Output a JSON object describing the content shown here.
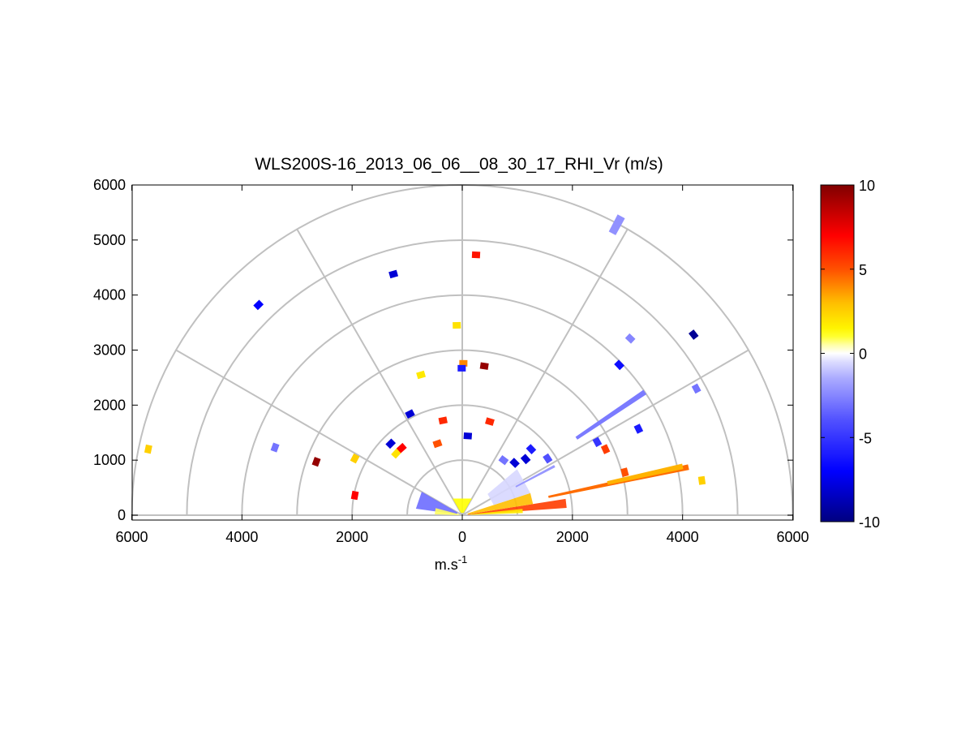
{
  "chart_data": {
    "type": "polar-scatter",
    "title": "WLS200S-16_2013_06_06__08_30_17_RHI_Vr (m/s)",
    "xlabel": "m.s",
    "xlabel_superscript": "-1",
    "ylabel": "",
    "xlim": [
      -6000,
      6000
    ],
    "ylim": [
      0,
      6000
    ],
    "x_ticks": [
      -6000,
      -4000,
      -2000,
      0,
      2000,
      4000,
      6000
    ],
    "x_tick_labels": [
      "6000",
      "4000",
      "2000",
      "0",
      "2000",
      "4000",
      "6000"
    ],
    "y_ticks": [
      0,
      1000,
      2000,
      3000,
      4000,
      5000,
      6000
    ],
    "y_tick_labels": [
      "0",
      "1000",
      "2000",
      "3000",
      "4000",
      "5000",
      "6000"
    ],
    "range_rings": [
      1000,
      2000,
      3000,
      4000,
      5000,
      6000
    ],
    "spokes_deg": [
      0,
      30,
      60,
      90,
      120,
      150,
      180
    ],
    "colorbar": {
      "min": -10,
      "max": 10,
      "ticks": [
        10,
        5,
        0,
        -5,
        -10
      ],
      "tick_labels": [
        "10",
        "5",
        "0",
        "-5",
        "-10"
      ]
    },
    "bands": [
      {
        "angle_deg": 12,
        "r_start": 1600,
        "r_end": 4200,
        "vr": 4.5
      },
      {
        "angle_deg": 12.5,
        "r_start": 2700,
        "r_end": 4100,
        "vr": 3.2
      },
      {
        "angle_deg": 28,
        "r_start": 1100,
        "r_end": 1900,
        "vr": -2.0
      },
      {
        "angle_deg": 34,
        "r_start": 2500,
        "r_end": 4000,
        "vr": -2.8
      },
      {
        "angle_deg": 62,
        "r_start": 5800,
        "r_end": 6150,
        "vr": -2.2
      }
    ],
    "wedge_echoes": [
      {
        "angle_from_deg": 4,
        "angle_to_deg": 9,
        "r_start": 100,
        "r_end": 1900,
        "vr": 5.5
      },
      {
        "angle_from_deg": 9,
        "angle_to_deg": 18,
        "r_start": 100,
        "r_end": 1300,
        "vr": 3.0
      },
      {
        "angle_from_deg": 2,
        "angle_to_deg": 6,
        "r_start": 150,
        "r_end": 1100,
        "vr": 1.8
      },
      {
        "angle_from_deg": 60,
        "angle_to_deg": 120,
        "r_start": 50,
        "r_end": 350,
        "vr": 1.2
      },
      {
        "angle_from_deg": 150,
        "angle_to_deg": 172,
        "r_start": 100,
        "r_end": 850,
        "vr": -3.2
      },
      {
        "angle_from_deg": 165,
        "angle_to_deg": 178,
        "r_start": 50,
        "r_end": 500,
        "vr": 0.8
      },
      {
        "angle_from_deg": 18,
        "angle_to_deg": 40,
        "r_start": 600,
        "r_end": 1300,
        "vr": -0.6
      }
    ],
    "points": [
      {
        "x": -5700,
        "y": 1200,
        "vr": 2.5
      },
      {
        "x": -3700,
        "y": 3820,
        "vr": -7.0
      },
      {
        "x": -3400,
        "y": 1230,
        "vr": -3.0
      },
      {
        "x": -2650,
        "y": 970,
        "vr": 9.5
      },
      {
        "x": -1950,
        "y": 1030,
        "vr": 2.5
      },
      {
        "x": -1950,
        "y": 360,
        "vr": 7.0
      },
      {
        "x": -1250,
        "y": 4380,
        "vr": -8.0
      },
      {
        "x": -950,
        "y": 1840,
        "vr": -8.0
      },
      {
        "x": -750,
        "y": 2550,
        "vr": 1.8
      },
      {
        "x": -100,
        "y": 3450,
        "vr": 2.0
      },
      {
        "x": 20,
        "y": 2760,
        "vr": 4.0
      },
      {
        "x": -10,
        "y": 2670,
        "vr": -6.0
      },
      {
        "x": 250,
        "y": 4730,
        "vr": 6.5
      },
      {
        "x": 400,
        "y": 2710,
        "vr": 9.5
      },
      {
        "x": 2850,
        "y": 2730,
        "vr": -6.5
      },
      {
        "x": 3050,
        "y": 3210,
        "vr": -2.5
      },
      {
        "x": 3200,
        "y": 1570,
        "vr": -6.0
      },
      {
        "x": 2450,
        "y": 1330,
        "vr": -5.0
      },
      {
        "x": 2600,
        "y": 1200,
        "vr": 5.5
      },
      {
        "x": 2950,
        "y": 780,
        "vr": 5.0
      },
      {
        "x": 4200,
        "y": 3280,
        "vr": -9.5
      },
      {
        "x": 4250,
        "y": 2300,
        "vr": -3.0
      },
      {
        "x": 4350,
        "y": 630,
        "vr": 2.5
      },
      {
        "x": -1300,
        "y": 1300,
        "vr": -8.0
      },
      {
        "x": -1200,
        "y": 1120,
        "vr": 2.0
      },
      {
        "x": -1100,
        "y": 1220,
        "vr": 7.0
      },
      {
        "x": -350,
        "y": 1720,
        "vr": 6.0
      },
      {
        "x": 500,
        "y": 1700,
        "vr": 6.0
      },
      {
        "x": 100,
        "y": 1440,
        "vr": -8.0
      },
      {
        "x": -450,
        "y": 1300,
        "vr": 5.0
      },
      {
        "x": 1250,
        "y": 1200,
        "vr": -6.0
      },
      {
        "x": 1150,
        "y": 1020,
        "vr": -8.0
      },
      {
        "x": 1550,
        "y": 1030,
        "vr": -4.0
      },
      {
        "x": 950,
        "y": 950,
        "vr": -8.0
      },
      {
        "x": 750,
        "y": 1000,
        "vr": -3.0
      }
    ]
  }
}
